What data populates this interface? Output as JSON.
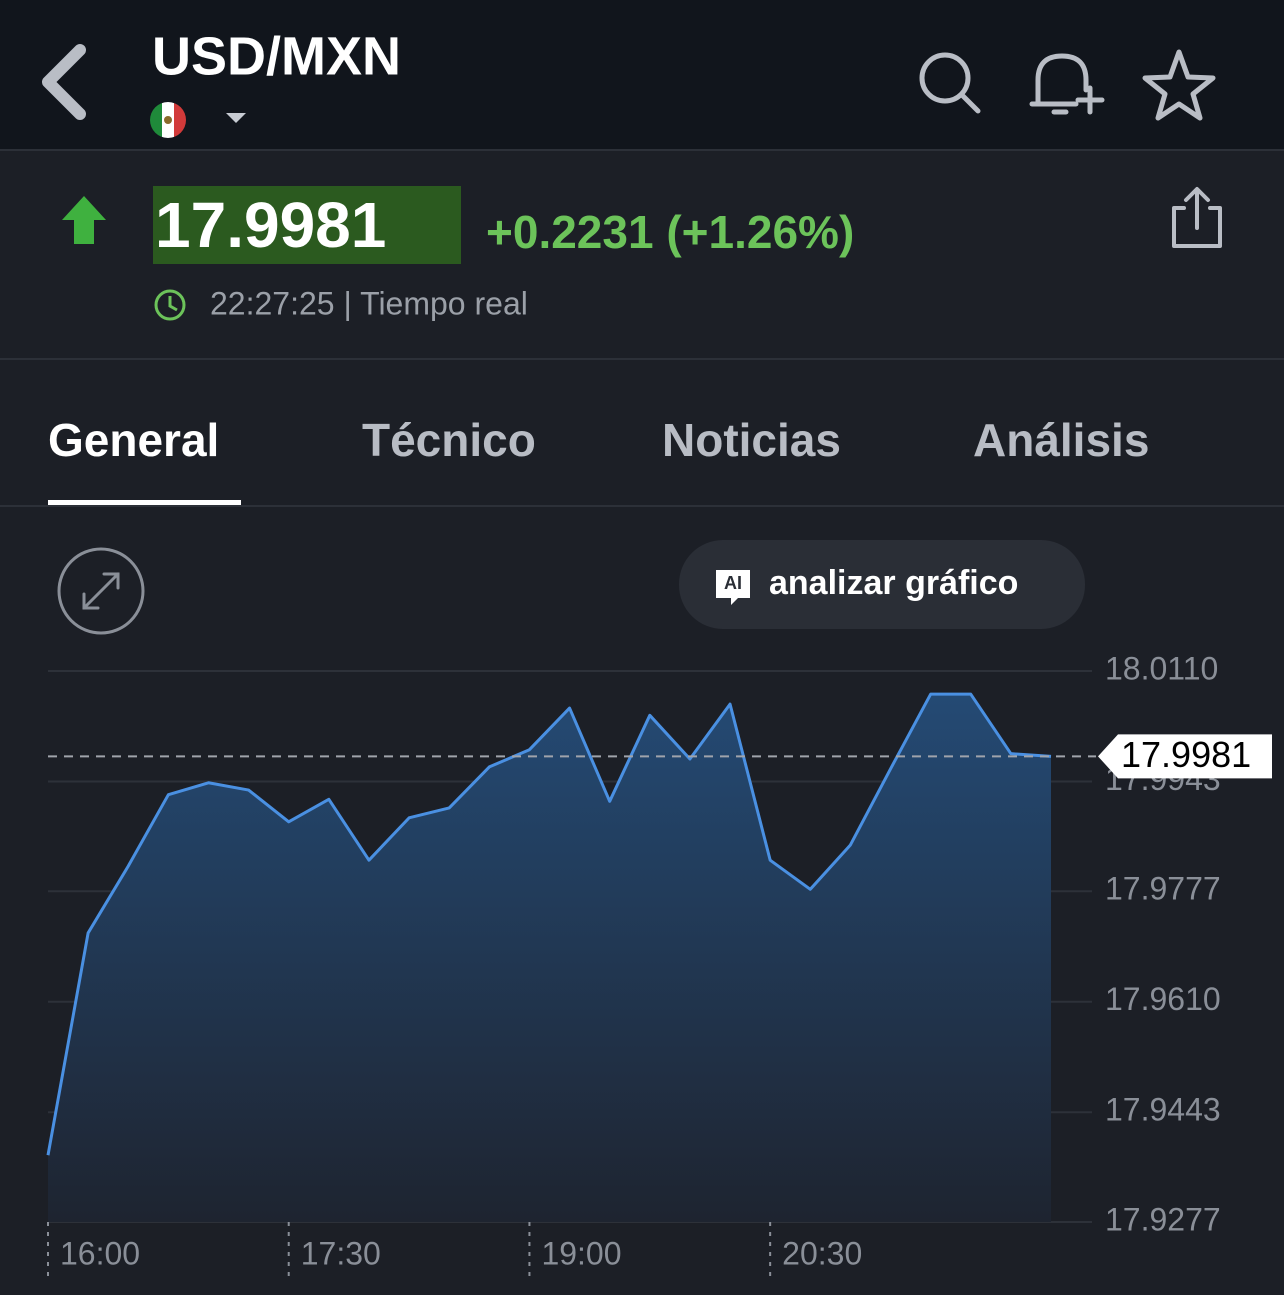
{
  "header": {
    "title": "USD/MXN"
  },
  "quote": {
    "price": "17.9981",
    "change": "+0.2231 (+1.26%)",
    "time": "22:27:25 | Tiempo real"
  },
  "tabs": [
    "General",
    "Técnico",
    "Noticias",
    "Análisis"
  ],
  "chart_button": {
    "badge": "AI",
    "label": "analizar gráfico"
  },
  "chart_data": {
    "type": "area",
    "categories": [
      "16:00",
      null,
      null,
      null,
      null,
      null,
      "17:30",
      null,
      null,
      null,
      null,
      null,
      "19:00",
      null,
      null,
      null,
      null,
      null,
      "20:30",
      null,
      null,
      null,
      null,
      null,
      null,
      null
    ],
    "values": [
      17.9378,
      17.9714,
      17.9815,
      17.9923,
      17.9941,
      17.993,
      17.9882,
      17.9916,
      17.9824,
      17.9888,
      17.9903,
      17.9965,
      17.9991,
      18.0054,
      17.9913,
      18.0043,
      17.9977,
      18.006,
      17.9824,
      17.978,
      17.9847,
      17.9962,
      18.0075,
      18.0075,
      17.9985,
      17.9981
    ],
    "color": "#4a90e2",
    "ylim": [
      17.9277,
      18.011
    ],
    "yticks": [
      {
        "value": 18.011,
        "label": "18.0110"
      },
      17.9943,
      17.9777,
      {
        "value": 17.961,
        "label": "17.9610"
      },
      17.9443,
      17.9277
    ],
    "grid": true,
    "current_price": 17.9981
  }
}
